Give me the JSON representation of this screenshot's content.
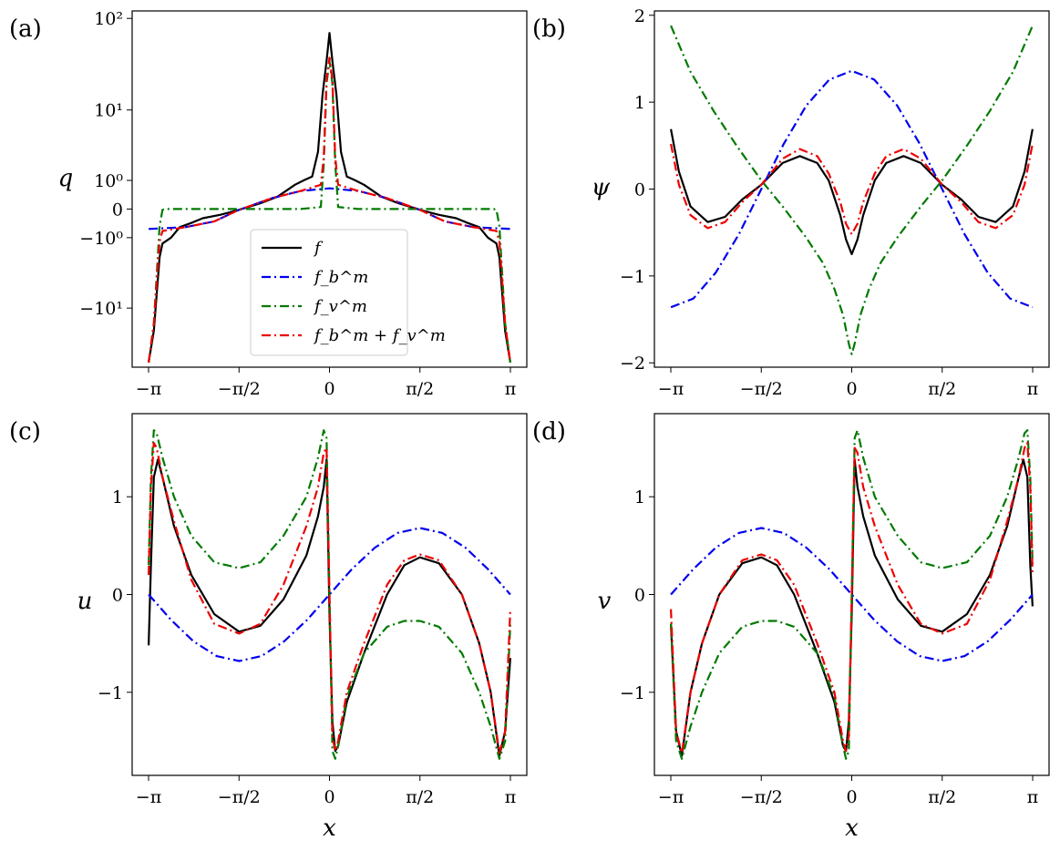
{
  "figure": {
    "legend": [
      {
        "key": "f",
        "label": "f",
        "color": "#000000",
        "dash": "solid"
      },
      {
        "key": "fb",
        "label": "f_b^m",
        "color": "#0000ee",
        "dash": "dashdot"
      },
      {
        "key": "fv",
        "label": "f_v^m",
        "color": "#007a00",
        "dash": "dashdot"
      },
      {
        "key": "fbv",
        "label": "f_b^m + f_v^m",
        "color": "#ee0000",
        "dash": "dashdot"
      }
    ]
  },
  "chart_data": [
    {
      "type": "line",
      "panel_label": "(a)",
      "ylabel": "q",
      "xlabel": "",
      "yscale": "symlog",
      "xlim": [
        -3.1416,
        3.1416
      ],
      "x_ticks": [
        -3.1416,
        -1.5708,
        0,
        1.5708,
        3.1416
      ],
      "x_tick_labels": [
        "−π",
        "−π/2",
        "0",
        "π/2",
        "π"
      ],
      "y_ticks": [
        -10,
        -1,
        0,
        1,
        10,
        100
      ],
      "y_tick_labels": [
        "−10¹",
        "−10⁰",
        "0",
        "10⁰",
        "10¹",
        "10²"
      ],
      "legend_position": "lower-center",
      "series": [
        {
          "name": "f",
          "x": [
            -3.14,
            -3.05,
            -2.95,
            -2.9,
            -2.75,
            -2.6,
            -2.4,
            -2.2,
            -1.9,
            -1.57,
            -1.2,
            -0.9,
            -0.6,
            -0.45,
            -0.3,
            -0.2,
            -0.12,
            -0.05,
            0,
            0.05,
            0.12,
            0.2,
            0.3,
            0.45,
            0.6,
            0.9,
            1.2,
            1.57,
            1.9,
            2.2,
            2.4,
            2.6,
            2.75,
            2.9,
            2.95,
            3.05,
            3.14
          ],
          "y": [
            -40,
            -18,
            -2.2,
            -1.3,
            -1.0,
            -0.55,
            -0.4,
            -0.25,
            -0.15,
            -0.02,
            0.15,
            0.35,
            0.8,
            1.0,
            1.2,
            3,
            15,
            35,
            70,
            35,
            15,
            3,
            1.2,
            1.0,
            0.8,
            0.35,
            0.15,
            -0.02,
            -0.15,
            -0.25,
            -0.4,
            -0.55,
            -1.0,
            -1.3,
            -2.2,
            -18,
            -40
          ]
        },
        {
          "name": "f_b^m",
          "x": [
            -3.14,
            -2.5,
            -2.0,
            -1.57,
            -1.0,
            -0.5,
            0,
            0.5,
            1.0,
            1.57,
            2.0,
            2.5,
            3.14
          ],
          "y": [
            -0.62,
            -0.55,
            -0.35,
            -0.02,
            0.3,
            0.55,
            0.65,
            0.55,
            0.3,
            -0.02,
            -0.35,
            -0.55,
            -0.62
          ]
        },
        {
          "name": "f_v^m",
          "x": [
            -3.14,
            -3.05,
            -2.95,
            -2.9,
            -2.85,
            -2.5,
            -1.57,
            -0.5,
            -0.15,
            -0.1,
            -0.05,
            0,
            0.05,
            0.1,
            0.15,
            0.5,
            1.57,
            2.5,
            2.85,
            2.9,
            2.95,
            3.05,
            3.14
          ],
          "y": [
            -40,
            -15,
            -0.5,
            -0.02,
            0,
            0,
            0,
            0,
            0.05,
            2,
            20,
            35,
            20,
            2,
            0.05,
            0,
            0,
            0,
            0,
            -0.02,
            -0.5,
            -15,
            -40
          ]
        },
        {
          "name": "f_b^m + f_v^m",
          "x": [
            -3.14,
            -3.05,
            -2.95,
            -2.9,
            -2.5,
            -2.0,
            -1.57,
            -1.0,
            -0.5,
            -0.15,
            -0.1,
            -0.05,
            0,
            0.05,
            0.1,
            0.15,
            0.5,
            1.0,
            1.57,
            2.0,
            2.5,
            2.9,
            2.95,
            3.05,
            3.14
          ],
          "y": [
            -40,
            -15,
            -1.2,
            -0.7,
            -0.55,
            -0.35,
            -0.02,
            0.3,
            0.55,
            0.8,
            2.5,
            22,
            38,
            22,
            2.5,
            0.8,
            0.55,
            0.3,
            -0.02,
            -0.35,
            -0.55,
            -0.7,
            -1.2,
            -15,
            -40
          ]
        }
      ]
    },
    {
      "type": "line",
      "panel_label": "(b)",
      "ylabel": "ψ",
      "xlabel": "",
      "ylim": [
        -2.05,
        2.05
      ],
      "xlim": [
        -3.1416,
        3.1416
      ],
      "x_ticks": [
        -3.1416,
        -1.5708,
        0,
        1.5708,
        3.1416
      ],
      "x_tick_labels": [
        "−π",
        "−π/2",
        "0",
        "π/2",
        "π"
      ],
      "y_ticks": [
        -2,
        -1,
        0,
        1,
        2
      ],
      "y_tick_labels": [
        "−2",
        "−1",
        "0",
        "1",
        "2"
      ],
      "series": [
        {
          "name": "f",
          "x": [
            -3.14,
            -3.0,
            -2.8,
            -2.5,
            -2.2,
            -1.9,
            -1.57,
            -1.2,
            -0.9,
            -0.6,
            -0.4,
            -0.2,
            -0.1,
            0,
            0.1,
            0.2,
            0.4,
            0.6,
            0.9,
            1.2,
            1.57,
            1.9,
            2.2,
            2.5,
            2.8,
            3.0,
            3.14
          ],
          "y": [
            0.69,
            0.2,
            -0.2,
            -0.38,
            -0.32,
            -0.12,
            0.05,
            0.3,
            0.38,
            0.3,
            0.1,
            -0.3,
            -0.58,
            -0.75,
            -0.58,
            -0.3,
            0.1,
            0.3,
            0.38,
            0.3,
            0.05,
            -0.12,
            -0.32,
            -0.38,
            -0.2,
            0.2,
            0.69
          ]
        },
        {
          "name": "f_b^m",
          "x": [
            -3.14,
            -2.75,
            -2.36,
            -1.96,
            -1.57,
            -1.18,
            -0.79,
            -0.39,
            0,
            0.39,
            0.79,
            1.18,
            1.57,
            1.96,
            2.36,
            2.75,
            3.14
          ],
          "y": [
            -1.36,
            -1.26,
            -0.96,
            -0.52,
            0.0,
            0.52,
            0.96,
            1.26,
            1.36,
            1.26,
            0.96,
            0.52,
            0.0,
            -0.52,
            -0.96,
            -1.26,
            -1.36
          ]
        },
        {
          "name": "f_v^m",
          "x": [
            -3.14,
            -2.8,
            -2.4,
            -2.0,
            -1.57,
            -1.2,
            -0.8,
            -0.5,
            -0.3,
            -0.15,
            -0.05,
            0,
            0.05,
            0.15,
            0.3,
            0.5,
            0.8,
            1.2,
            1.57,
            2.0,
            2.4,
            2.8,
            3.14
          ],
          "y": [
            1.88,
            1.35,
            0.9,
            0.5,
            0.1,
            -0.2,
            -0.55,
            -0.85,
            -1.15,
            -1.45,
            -1.78,
            -1.9,
            -1.78,
            -1.45,
            -1.15,
            -0.85,
            -0.55,
            -0.2,
            0.1,
            0.5,
            0.9,
            1.35,
            1.88
          ]
        },
        {
          "name": "f_b^m + f_v^m",
          "x": [
            -3.14,
            -3.0,
            -2.8,
            -2.5,
            -2.2,
            -1.9,
            -1.57,
            -1.2,
            -0.9,
            -0.6,
            -0.4,
            -0.2,
            -0.1,
            0,
            0.1,
            0.2,
            0.4,
            0.6,
            0.9,
            1.2,
            1.57,
            1.9,
            2.2,
            2.5,
            2.8,
            3.0,
            3.14
          ],
          "y": [
            0.52,
            0.05,
            -0.3,
            -0.45,
            -0.38,
            -0.15,
            0.05,
            0.35,
            0.46,
            0.38,
            0.18,
            -0.15,
            -0.4,
            -0.52,
            -0.4,
            -0.15,
            0.18,
            0.38,
            0.46,
            0.35,
            0.05,
            -0.15,
            -0.38,
            -0.45,
            -0.3,
            0.05,
            0.52
          ]
        }
      ]
    },
    {
      "type": "line",
      "panel_label": "(c)",
      "ylabel": "u",
      "xlabel": "x",
      "ylim": [
        -1.85,
        1.85
      ],
      "xlim": [
        -3.1416,
        3.1416
      ],
      "x_ticks": [
        -3.1416,
        -1.5708,
        0,
        1.5708,
        3.1416
      ],
      "x_tick_labels": [
        "−π",
        "−π/2",
        "0",
        "π/2",
        "π"
      ],
      "y_ticks": [
        -1,
        0,
        1
      ],
      "y_tick_labels": [
        "−1",
        "0",
        "1"
      ],
      "series": [
        {
          "name": "f",
          "x": [
            -3.14,
            -3.1,
            -3.05,
            -2.98,
            -2.9,
            -2.7,
            -2.4,
            -2.0,
            -1.57,
            -1.2,
            -0.8,
            -0.4,
            -0.2,
            -0.1,
            -0.05,
            0.0,
            0.05,
            0.1,
            0.15,
            0.3,
            0.6,
            1.0,
            1.3,
            1.57,
            1.9,
            2.3,
            2.6,
            2.8,
            2.95,
            3.05,
            3.14
          ],
          "y": [
            -0.52,
            0.3,
            1.2,
            1.38,
            1.2,
            0.7,
            0.2,
            -0.2,
            -0.38,
            -0.32,
            -0.05,
            0.4,
            0.8,
            1.1,
            1.38,
            -0.2,
            -1.3,
            -1.6,
            -1.55,
            -1.1,
            -0.6,
            0.0,
            0.3,
            0.38,
            0.32,
            0.0,
            -0.5,
            -1.0,
            -1.65,
            -1.4,
            -0.65
          ]
        },
        {
          "name": "f_b^m",
          "x": [
            -3.14,
            -2.75,
            -2.36,
            -1.96,
            -1.57,
            -1.18,
            -0.79,
            -0.39,
            0,
            0.39,
            0.79,
            1.18,
            1.57,
            1.96,
            2.36,
            2.75,
            3.14
          ],
          "y": [
            0.0,
            -0.26,
            -0.48,
            -0.63,
            -0.68,
            -0.63,
            -0.48,
            -0.26,
            0.0,
            0.26,
            0.48,
            0.63,
            0.68,
            0.63,
            0.48,
            0.26,
            0.0
          ]
        },
        {
          "name": "f_v^m",
          "x": [
            -3.14,
            -3.1,
            -3.05,
            -3.0,
            -2.9,
            -2.7,
            -2.4,
            -2.0,
            -1.57,
            -1.2,
            -0.8,
            -0.4,
            -0.2,
            -0.1,
            -0.05,
            0.0,
            0.05,
            0.1,
            0.15,
            0.3,
            0.6,
            1.0,
            1.3,
            1.57,
            1.9,
            2.3,
            2.6,
            2.8,
            2.95,
            3.05,
            3.14
          ],
          "y": [
            0.3,
            1.2,
            1.68,
            1.65,
            1.4,
            1.0,
            0.6,
            0.33,
            0.27,
            0.33,
            0.6,
            1.0,
            1.4,
            1.68,
            1.6,
            0.0,
            -1.6,
            -1.68,
            -1.55,
            -1.05,
            -0.6,
            -0.33,
            -0.27,
            -0.27,
            -0.33,
            -0.6,
            -1.0,
            -1.35,
            -1.68,
            -1.5,
            -0.3
          ]
        },
        {
          "name": "f_b^m + f_v^m",
          "x": [
            -3.14,
            -3.1,
            -3.05,
            -3.0,
            -2.9,
            -2.7,
            -2.4,
            -2.0,
            -1.57,
            -1.2,
            -0.8,
            -0.4,
            -0.2,
            -0.1,
            -0.05,
            0.0,
            0.05,
            0.1,
            0.15,
            0.3,
            0.6,
            1.0,
            1.3,
            1.57,
            1.9,
            2.3,
            2.6,
            2.8,
            2.95,
            3.05,
            3.14
          ],
          "y": [
            0.2,
            1.1,
            1.55,
            1.5,
            1.2,
            0.75,
            0.15,
            -0.3,
            -0.4,
            -0.3,
            0.1,
            0.7,
            1.1,
            1.45,
            1.5,
            0.0,
            -1.45,
            -1.6,
            -1.5,
            -1.0,
            -0.5,
            0.1,
            0.35,
            0.41,
            0.35,
            0.0,
            -0.5,
            -1.0,
            -1.62,
            -1.4,
            -0.15
          ]
        }
      ]
    },
    {
      "type": "line",
      "panel_label": "(d)",
      "ylabel": "v",
      "xlabel": "x",
      "ylim": [
        -1.85,
        1.85
      ],
      "xlim": [
        -3.1416,
        3.1416
      ],
      "x_ticks": [
        -3.1416,
        -1.5708,
        0,
        1.5708,
        3.1416
      ],
      "x_tick_labels": [
        "−π",
        "−π/2",
        "0",
        "π/2",
        "π"
      ],
      "y_ticks": [
        -1,
        0,
        1
      ],
      "y_tick_labels": [
        "−1",
        "0",
        "1"
      ],
      "series": [
        {
          "name": "f",
          "x": [
            -3.14,
            -3.05,
            -2.95,
            -2.8,
            -2.6,
            -2.3,
            -1.9,
            -1.57,
            -1.3,
            -1.0,
            -0.6,
            -0.3,
            -0.15,
            -0.1,
            -0.05,
            0.0,
            0.05,
            0.1,
            0.2,
            0.4,
            0.8,
            1.2,
            1.57,
            2.0,
            2.4,
            2.7,
            2.9,
            2.98,
            3.05,
            3.1,
            3.14
          ],
          "y": [
            -0.3,
            -1.4,
            -1.65,
            -1.0,
            -0.5,
            0.0,
            0.32,
            0.38,
            0.3,
            0.0,
            -0.6,
            -1.1,
            -1.55,
            -1.6,
            -1.3,
            -0.2,
            1.38,
            1.1,
            0.8,
            0.4,
            -0.05,
            -0.32,
            -0.38,
            -0.2,
            0.2,
            0.7,
            1.2,
            1.38,
            1.2,
            0.3,
            -0.12
          ]
        },
        {
          "name": "f_b^m",
          "x": [
            -3.14,
            -2.75,
            -2.36,
            -1.96,
            -1.57,
            -1.18,
            -0.79,
            -0.39,
            0,
            0.39,
            0.79,
            1.18,
            1.57,
            1.96,
            2.36,
            2.75,
            3.14
          ],
          "y": [
            0.0,
            0.26,
            0.48,
            0.63,
            0.68,
            0.63,
            0.48,
            0.26,
            0.0,
            -0.26,
            -0.48,
            -0.63,
            -0.68,
            -0.63,
            -0.48,
            -0.26,
            0.0
          ]
        },
        {
          "name": "f_v^m",
          "x": [
            -3.14,
            -3.05,
            -2.95,
            -2.8,
            -2.6,
            -2.3,
            -1.9,
            -1.57,
            -1.3,
            -1.0,
            -0.6,
            -0.3,
            -0.15,
            -0.1,
            -0.05,
            0.0,
            0.05,
            0.1,
            0.2,
            0.4,
            0.8,
            1.2,
            1.57,
            2.0,
            2.4,
            2.7,
            2.9,
            3.0,
            3.05,
            3.1,
            3.14
          ],
          "y": [
            -0.3,
            -1.5,
            -1.68,
            -1.35,
            -1.0,
            -0.6,
            -0.33,
            -0.27,
            -0.27,
            -0.33,
            -0.6,
            -1.05,
            -1.55,
            -1.68,
            -1.6,
            0.0,
            1.6,
            1.68,
            1.4,
            1.0,
            0.6,
            0.33,
            0.27,
            0.33,
            0.6,
            1.0,
            1.4,
            1.65,
            1.68,
            1.2,
            0.3
          ]
        },
        {
          "name": "f_b^m + f_v^m",
          "x": [
            -3.14,
            -3.05,
            -2.95,
            -2.8,
            -2.6,
            -2.3,
            -1.9,
            -1.57,
            -1.3,
            -1.0,
            -0.6,
            -0.3,
            -0.15,
            -0.1,
            -0.05,
            0.0,
            0.05,
            0.1,
            0.2,
            0.4,
            0.8,
            1.2,
            1.57,
            2.0,
            2.4,
            2.7,
            2.9,
            3.0,
            3.05,
            3.1,
            3.14
          ],
          "y": [
            -0.15,
            -1.4,
            -1.62,
            -1.0,
            -0.5,
            0.0,
            0.35,
            0.41,
            0.35,
            0.1,
            -0.5,
            -1.0,
            -1.5,
            -1.6,
            -1.45,
            0.0,
            1.5,
            1.45,
            1.1,
            0.7,
            0.1,
            -0.3,
            -0.4,
            -0.3,
            0.15,
            0.75,
            1.2,
            1.5,
            1.55,
            1.1,
            0.2
          ]
        }
      ]
    }
  ]
}
